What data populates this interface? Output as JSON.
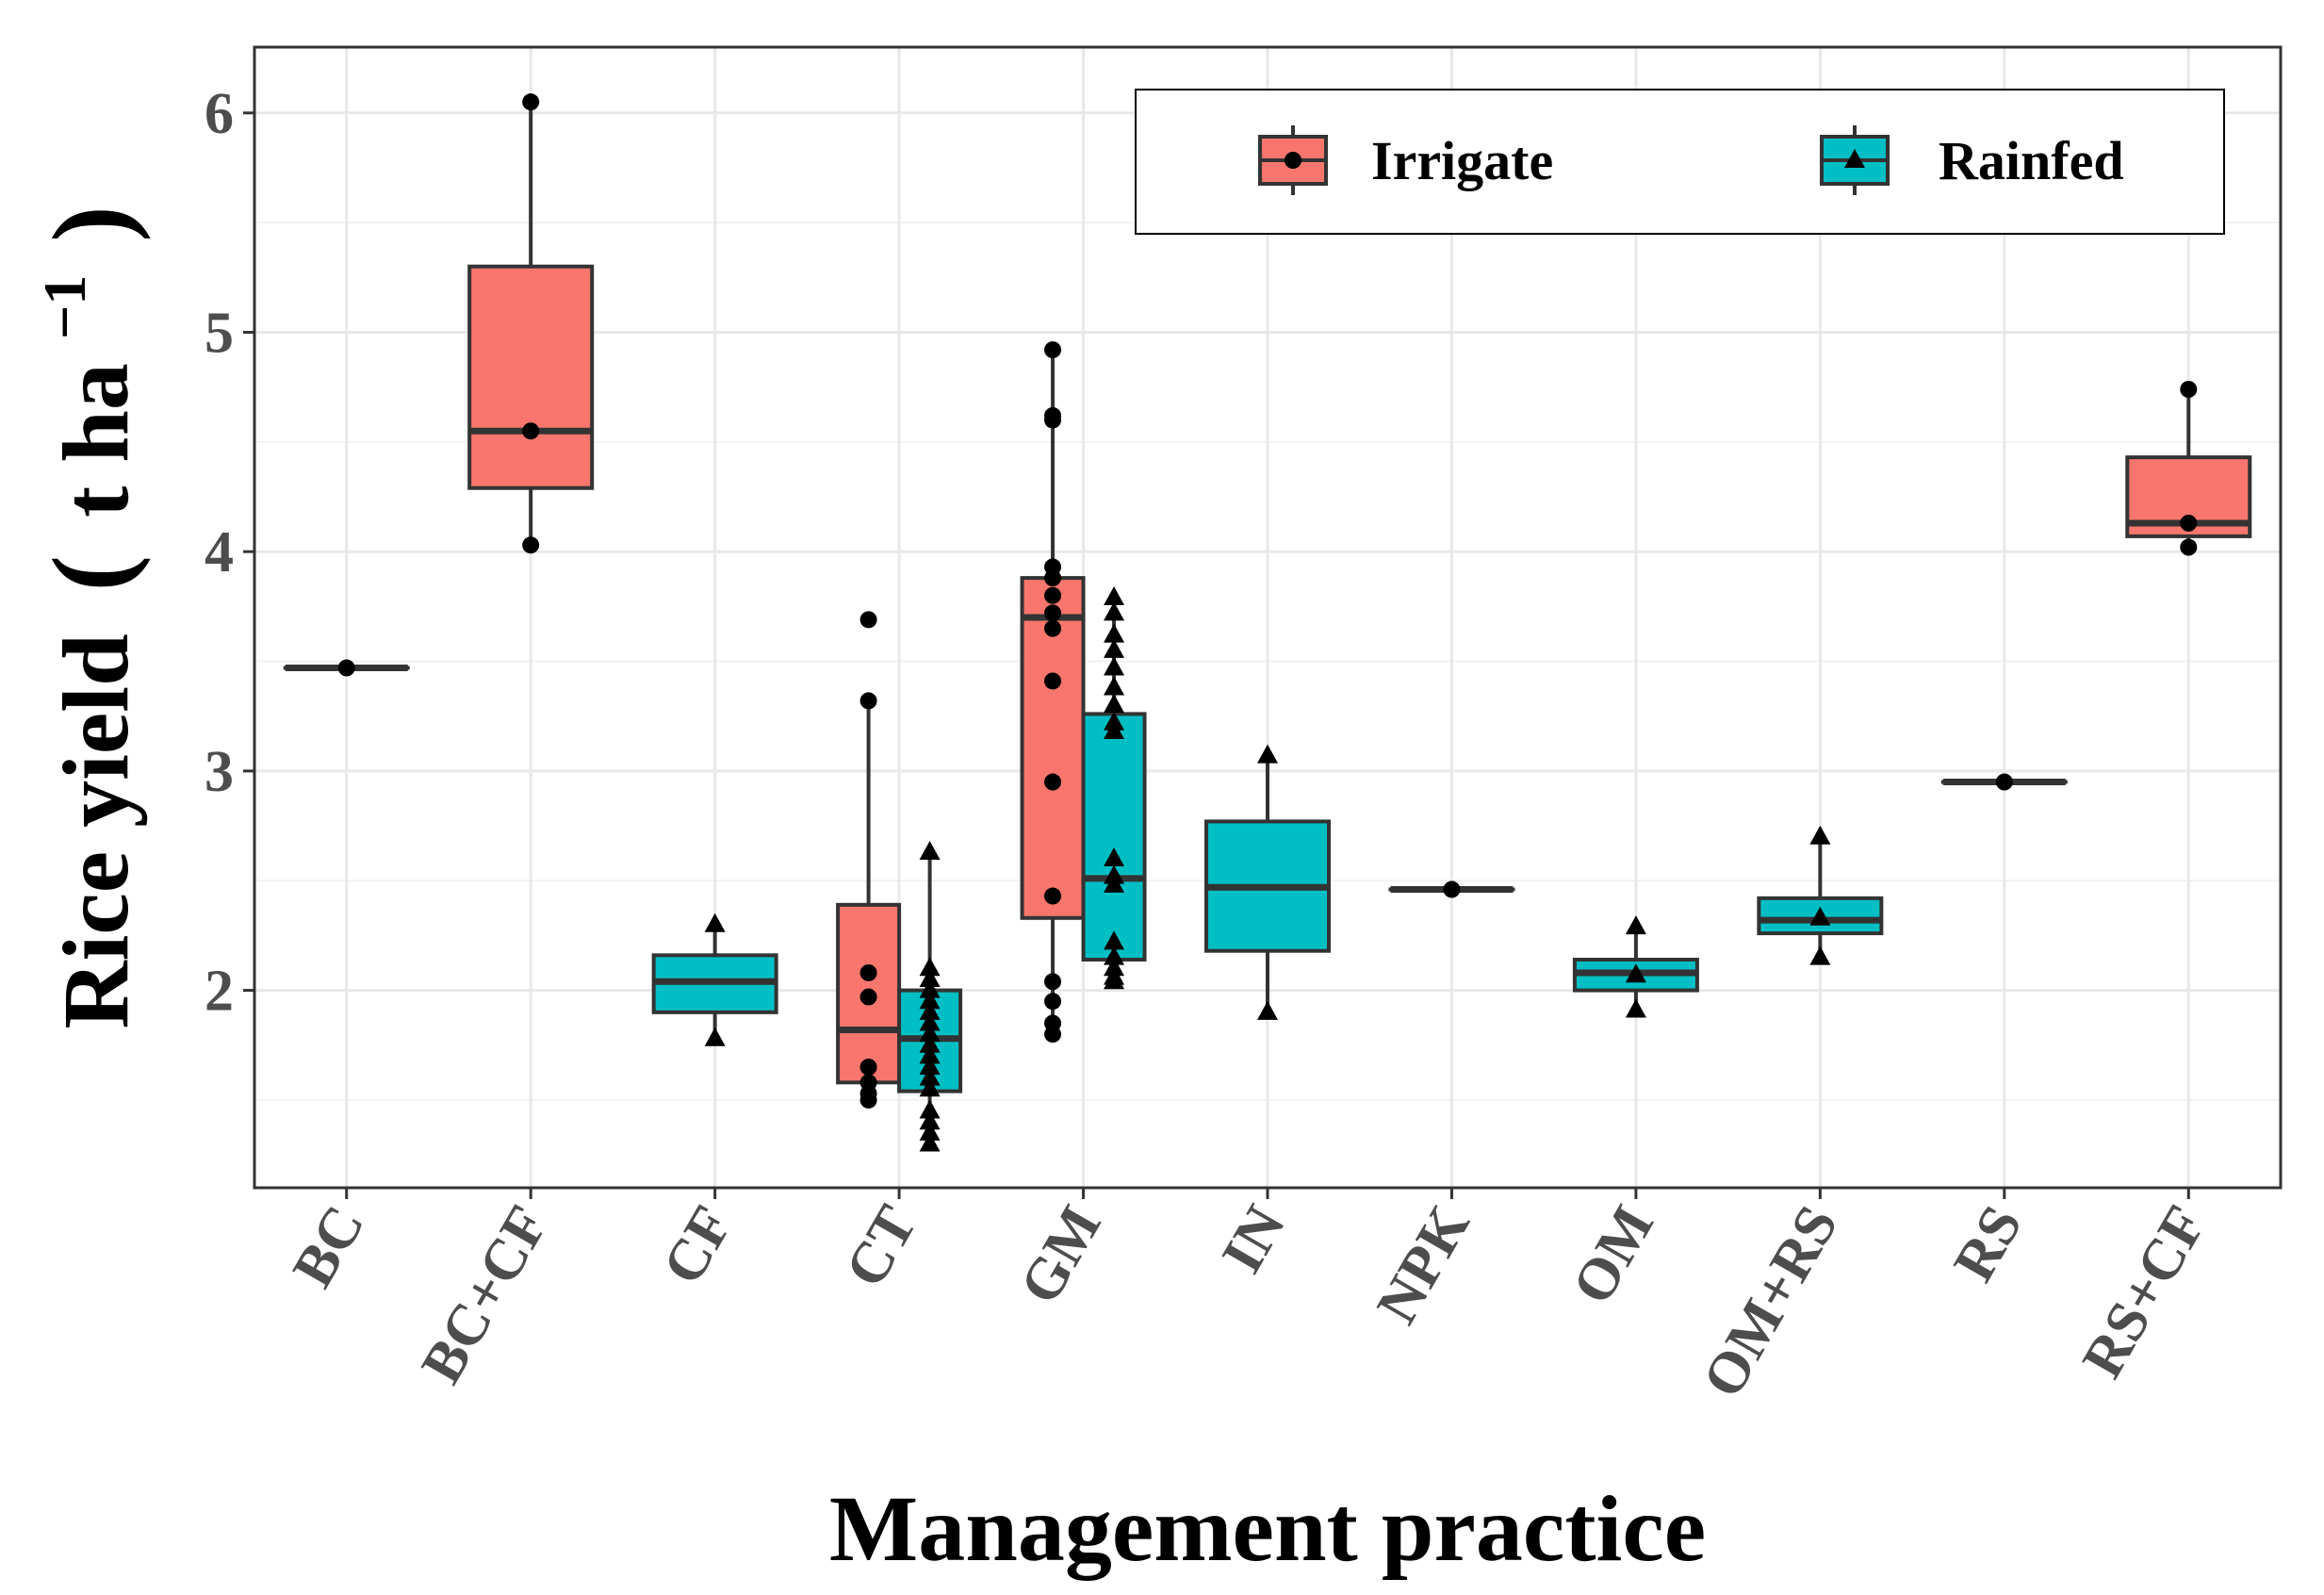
{
  "chart_data": {
    "type": "boxplot",
    "xlabel": "Management practice",
    "ylabel_main": "Rice yield",
    "ylabel_unit_open": "(",
    "ylabel_unit_base": "t ha",
    "ylabel_unit_exp": "−1",
    "ylabel_unit_close": ")",
    "ylim": [
      1.1,
      6.3
    ],
    "yticks": [
      2,
      3,
      4,
      5,
      6
    ],
    "y_minor_grid": [
      1.5,
      2.5,
      3.5,
      4.5,
      5.5
    ],
    "grid": true,
    "legend_position": "top-right",
    "categories": [
      "BC",
      "BC+CF",
      "CF",
      "CT",
      "GM",
      "IN",
      "NPK",
      "OM",
      "OM+RS",
      "RS",
      "RS+CF"
    ],
    "series": [
      {
        "name": "Irrigate",
        "color": "#F8766D",
        "marker": "circle",
        "boxes": [
          {
            "category": "BC",
            "min": 3.47,
            "q1": 3.47,
            "median": 3.47,
            "q3": 3.47,
            "max": 3.47,
            "points": [
              3.47
            ]
          },
          {
            "category": "BC+CF",
            "min": 4.03,
            "q1": 4.29,
            "median": 4.55,
            "q3": 5.3,
            "max": 6.05,
            "points": [
              6.05,
              4.55,
              4.03
            ]
          },
          {
            "category": "CT",
            "min": 1.5,
            "q1": 1.58,
            "median": 1.82,
            "q3": 2.39,
            "max": 3.32,
            "points": [
              3.69,
              3.32,
              2.08,
              1.97,
              1.65,
              1.58,
              1.53,
              1.5
            ]
          },
          {
            "category": "GM",
            "min": 1.8,
            "q1": 2.33,
            "median": 3.7,
            "q3": 3.88,
            "max": 4.92,
            "points": [
              4.92,
              4.62,
              4.6,
              3.93,
              3.88,
              3.8,
              3.72,
              3.65,
              3.41,
              2.95,
              2.43,
              2.04,
              1.95,
              1.85,
              1.8
            ]
          },
          {
            "category": "NPK",
            "min": 2.46,
            "q1": 2.46,
            "median": 2.46,
            "q3": 2.46,
            "max": 2.46,
            "points": [
              2.46
            ]
          },
          {
            "category": "RS",
            "min": 2.95,
            "q1": 2.95,
            "median": 2.95,
            "q3": 2.95,
            "max": 2.95,
            "points": [
              2.95
            ]
          },
          {
            "category": "RS+CF",
            "min": 4.02,
            "q1": 4.07,
            "median": 4.13,
            "q3": 4.43,
            "max": 4.74,
            "points": [
              4.74,
              4.13,
              4.02
            ]
          }
        ]
      },
      {
        "name": "Rainfed",
        "color": "#00BFC4",
        "marker": "triangle",
        "boxes": [
          {
            "category": "CF",
            "min": 1.78,
            "q1": 1.9,
            "median": 2.04,
            "q3": 2.16,
            "max": 2.3,
            "points": [
              2.3,
              1.78
            ]
          },
          {
            "category": "CT",
            "min": 1.3,
            "q1": 1.54,
            "median": 1.78,
            "q3": 2.0,
            "max": 2.63,
            "points": [
              2.63,
              2.1,
              2.05,
              2.0,
              1.95,
              1.9,
              1.85,
              1.8,
              1.75,
              1.7,
              1.65,
              1.6,
              1.55,
              1.45,
              1.4,
              1.35,
              1.3
            ]
          },
          {
            "category": "GM",
            "min": 2.04,
            "q1": 2.14,
            "median": 2.51,
            "q3": 3.26,
            "max": 3.79,
            "points": [
              3.79,
              3.72,
              3.62,
              3.55,
              3.47,
              3.38,
              3.3,
              3.22,
              3.18,
              2.6,
              2.52,
              2.48,
              2.22,
              2.15,
              2.1,
              2.06,
              2.04
            ]
          },
          {
            "category": "IN",
            "min": 1.9,
            "q1": 2.18,
            "median": 2.47,
            "q3": 2.77,
            "max": 3.07,
            "points": [
              3.07,
              1.9
            ]
          },
          {
            "category": "OM",
            "min": 1.91,
            "q1": 2.0,
            "median": 2.08,
            "q3": 2.14,
            "max": 2.29,
            "points": [
              2.29,
              2.07,
              1.91
            ]
          },
          {
            "category": "OM+RS",
            "min": 2.15,
            "q1": 2.26,
            "median": 2.32,
            "q3": 2.42,
            "max": 2.7,
            "points": [
              2.7,
              2.33,
              2.15
            ]
          }
        ]
      }
    ]
  }
}
